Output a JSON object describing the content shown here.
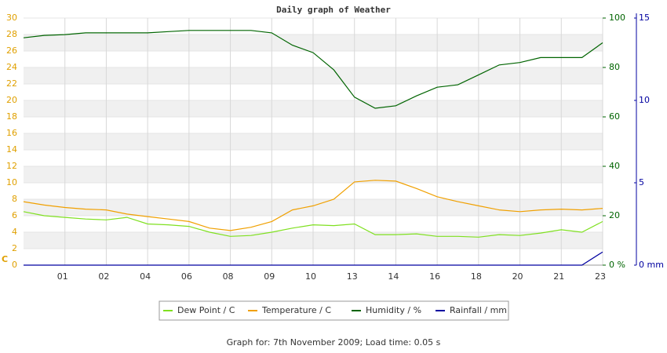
{
  "chart_data": {
    "type": "line",
    "title": "Daily graph of Weather",
    "y_label": "C",
    "footer": "Graph for: 7th November 2009; Load time: 0.05 s",
    "x": [
      0,
      0.5,
      1,
      1.5,
      2,
      2.5,
      3,
      3.5,
      4,
      4.5,
      5,
      5.5,
      6,
      6.5,
      7,
      7.5,
      8,
      8.5,
      9,
      9.5,
      10,
      10.5,
      11,
      11.5,
      12,
      12.5,
      13,
      13.5,
      14
    ],
    "xlim": [
      0,
      14
    ],
    "xticks": [
      {
        "value": 1,
        "label": "01"
      },
      {
        "value": 2,
        "label": "02"
      },
      {
        "value": 3,
        "label": "04"
      },
      {
        "value": 4,
        "label": "06"
      },
      {
        "value": 5,
        "label": "08"
      },
      {
        "value": 6,
        "label": "09"
      },
      {
        "value": 7,
        "label": "10"
      },
      {
        "value": 8,
        "label": "13"
      },
      {
        "value": 9,
        "label": "14"
      },
      {
        "value": 10,
        "label": "16"
      },
      {
        "value": 11,
        "label": "18"
      },
      {
        "value": 12,
        "label": "20"
      },
      {
        "value": 13,
        "label": "21"
      },
      {
        "value": 14,
        "label": "23"
      }
    ],
    "ylim": [
      0,
      30
    ],
    "yticks": [
      0,
      2,
      4,
      6,
      8,
      10,
      12,
      14,
      16,
      18,
      20,
      22,
      24,
      26,
      28,
      30
    ],
    "y2lim": [
      0,
      100
    ],
    "y2ticks": [
      {
        "value": 0,
        "label": "0 %"
      },
      20,
      40,
      60,
      80,
      100
    ],
    "y3lim": [
      0,
      15
    ],
    "y3ticks": [
      {
        "value": 0,
        "label": "0 mm"
      },
      5,
      10,
      15
    ],
    "grid": true,
    "series": [
      {
        "name": "Dew Point / C",
        "color": "#7fe020",
        "axis": "y",
        "values": [
          6.5,
          6.0,
          5.8,
          5.6,
          5.5,
          5.8,
          5.0,
          4.9,
          4.7,
          4.0,
          3.5,
          3.6,
          4.0,
          4.5,
          4.9,
          4.8,
          5.0,
          3.7,
          3.7,
          3.8,
          3.5,
          3.5,
          3.4,
          3.7,
          3.6,
          3.9,
          4.3,
          4.0,
          5.3
        ]
      },
      {
        "name": "Temperature / C",
        "color": "#f0a000",
        "axis": "y",
        "values": [
          7.7,
          7.3,
          7.0,
          6.8,
          6.7,
          6.2,
          5.9,
          5.6,
          5.3,
          4.5,
          4.2,
          4.6,
          5.3,
          6.7,
          7.2,
          8.0,
          10.1,
          10.3,
          10.2,
          9.3,
          8.3,
          7.7,
          7.2,
          6.7,
          6.5,
          6.7,
          6.8,
          6.7,
          6.9
        ]
      },
      {
        "name": "Humidity / %",
        "color": "#006400",
        "axis": "y2",
        "values": [
          92,
          93,
          93.3,
          94,
          94,
          94,
          94,
          94.5,
          95,
          95,
          95,
          95,
          94,
          89,
          86,
          79,
          68,
          63.5,
          64.5,
          68.5,
          72,
          73,
          77,
          81,
          82,
          84,
          84,
          84,
          90
        ]
      },
      {
        "name": "Rainfall / mm",
        "color": "#0000a0",
        "axis": "y3",
        "values": [
          0,
          0,
          0,
          0,
          0,
          0,
          0,
          0,
          0,
          0,
          0,
          0,
          0,
          0,
          0,
          0,
          0,
          0,
          0,
          0,
          0,
          0,
          0,
          0,
          0,
          0,
          0,
          0,
          0.8
        ]
      }
    ]
  }
}
